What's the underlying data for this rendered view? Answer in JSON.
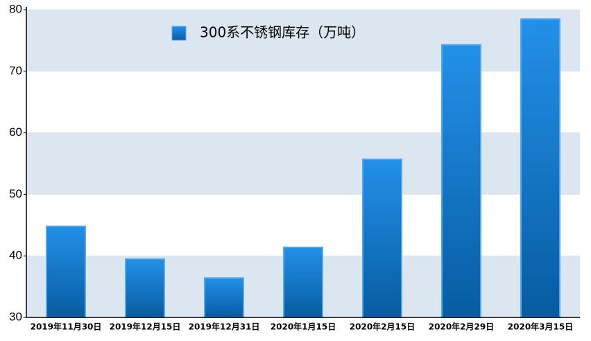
{
  "chart_data": {
    "type": "bar",
    "categories": [
      "2019年11月30日",
      "2019年12月15日",
      "2019年12月31日",
      "2020年1月15日",
      "2020年2月15日",
      "2020年2月29日",
      "2020年3月15日"
    ],
    "series": [
      {
        "name": "300系不锈钢库存（万吨）",
        "color": "#0a84e6",
        "values": [
          44.8,
          39.5,
          36.4,
          41.4,
          55.7,
          74.3,
          78.5
        ]
      }
    ],
    "ylim": [
      30,
      80
    ],
    "yticks": [
      30,
      40,
      50,
      60,
      70,
      80
    ],
    "grid": true,
    "legend": "top"
  }
}
